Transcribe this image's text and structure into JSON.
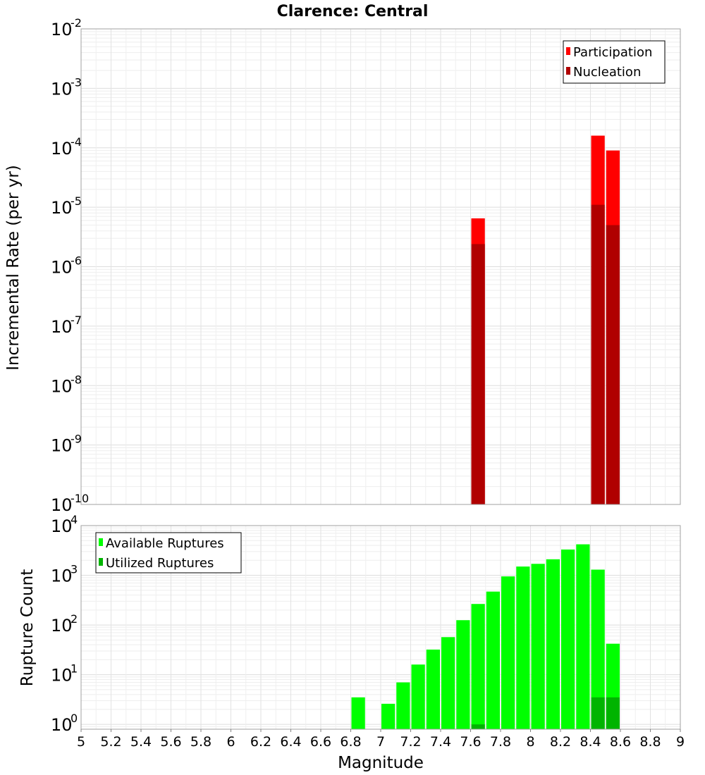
{
  "chart_data": [
    {
      "type": "bar",
      "title": "Clarence: Central",
      "xlabel": "",
      "ylabel": "Incremental Rate (per yr)",
      "yscale": "log",
      "ylim": [
        1e-10,
        0.01
      ],
      "xlim": [
        5,
        9
      ],
      "y_tick_exponents": [
        "-2",
        "-3",
        "-4",
        "-5",
        "-6",
        "-7",
        "-8",
        "-9",
        "-10"
      ],
      "y_tick_base": "10",
      "grid": true,
      "legend_position": "top-right",
      "colors": {
        "Participation": "#ff0000",
        "Nucleation": "#b00000"
      },
      "series": [
        {
          "name": "Participation",
          "x": [
            7.65,
            8.45,
            8.55
          ],
          "values": [
            6.5e-06,
            0.00016,
            9e-05
          ]
        },
        {
          "name": "Nucleation",
          "x": [
            7.65,
            8.45,
            8.55
          ],
          "values": [
            2.4e-06,
            1.1e-05,
            5e-06
          ]
        }
      ]
    },
    {
      "type": "bar",
      "title": "",
      "xlabel": "Magnitude",
      "ylabel": "Rupture Count",
      "yscale": "log",
      "ylim": [
        0.8,
        10000
      ],
      "xlim": [
        5,
        9
      ],
      "x_ticks": [
        "5",
        "5.2",
        "5.4",
        "5.6",
        "5.8",
        "6",
        "6.2",
        "6.4",
        "6.6",
        "6.8",
        "7",
        "7.2",
        "7.4",
        "7.6",
        "7.8",
        "8",
        "8.2",
        "8.4",
        "8.6",
        "8.8",
        "9"
      ],
      "y_tick_exponents": [
        "4",
        "3",
        "2",
        "1",
        "0"
      ],
      "y_tick_base": "10",
      "grid": true,
      "legend_position": "top-left",
      "colors": {
        "Available Ruptures": "#00ff00",
        "Utilized Ruptures": "#00b400"
      },
      "series": [
        {
          "name": "Available Ruptures",
          "x": [
            6.85,
            7.05,
            7.15,
            7.25,
            7.35,
            7.45,
            7.55,
            7.65,
            7.75,
            7.85,
            7.95,
            8.05,
            8.15,
            8.25,
            8.35,
            8.45,
            8.55
          ],
          "values": [
            3.5,
            2.6,
            7,
            16,
            32,
            57,
            125,
            265,
            470,
            950,
            1500,
            1700,
            2100,
            3300,
            4200,
            1300,
            42
          ]
        },
        {
          "name": "Utilized Ruptures",
          "x": [
            7.65,
            8.45,
            8.55
          ],
          "values": [
            1,
            3.5,
            3.5
          ]
        }
      ]
    }
  ]
}
